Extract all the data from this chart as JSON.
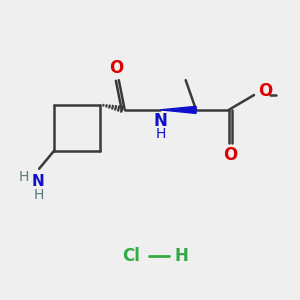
{
  "background_color": "#efefef",
  "bond_color": "#3a3a3a",
  "bond_width": 1.8,
  "O_color": "#dd0000",
  "N_color": "#1010cc",
  "NH2_color": "#5a7a7a",
  "Cl_color": "#33aa44",
  "figsize": [
    3.0,
    3.0
  ],
  "dpi": 100,
  "xlim": [
    0,
    10
  ],
  "ylim": [
    0,
    10
  ]
}
